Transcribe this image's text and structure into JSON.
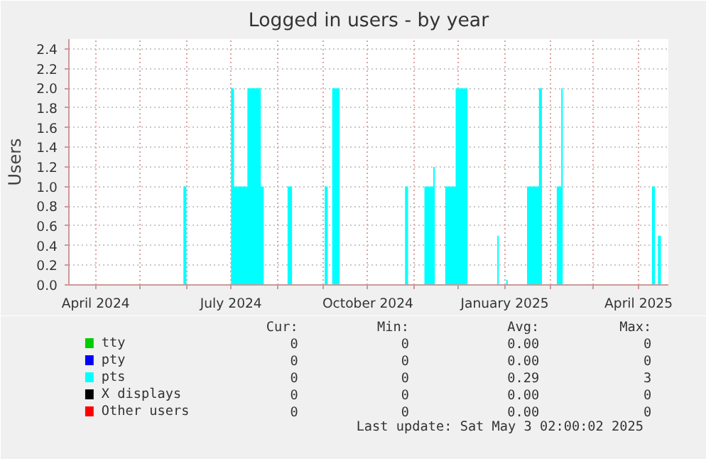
{
  "chart_data": {
    "type": "area",
    "title": "Logged in users - by year",
    "ylabel": "Users",
    "series": [
      {
        "name": "tty",
        "color": "#00cc00",
        "type": "line",
        "values": [
          null
        ]
      },
      {
        "name": "pty",
        "color": "#0000ff",
        "type": "line",
        "values": [
          null
        ]
      },
      {
        "name": "X displays",
        "color": "#000000",
        "type": "line",
        "values": [
          null
        ]
      },
      {
        "name": "Other users",
        "color": "#ff0000",
        "type": "line",
        "values": [
          null
        ]
      },
      {
        "name": "pts",
        "color": "#00ffff",
        "x": [
          "2024-03-14",
          "2024-05-30",
          "2024-05-30",
          "2024-06-01",
          "2024-06-01",
          "2024-07-01",
          "2024-07-01",
          "2024-07-03",
          "2024-07-03",
          "2024-07-12",
          "2024-07-12",
          "2024-07-21",
          "2024-07-21",
          "2024-07-23",
          "2024-07-23",
          "2024-08-08",
          "2024-08-08",
          "2024-08-11",
          "2024-08-11",
          "2024-09-02",
          "2024-09-02",
          "2024-09-04",
          "2024-09-04",
          "2024-09-07",
          "2024-09-07",
          "2024-09-12",
          "2024-09-12",
          "2024-10-26",
          "2024-10-26",
          "2024-10-28",
          "2024-10-28",
          "2024-11-08",
          "2024-11-08",
          "2024-11-14",
          "2024-11-14",
          "2024-11-15",
          "2024-11-15",
          "2024-11-22",
          "2024-11-22",
          "2024-11-29",
          "2024-11-29",
          "2024-12-07",
          "2024-12-07",
          "2024-12-27",
          "2024-12-27",
          "2024-12-28",
          "2024-12-28",
          "2025-01-02",
          "2025-01-02",
          "2025-01-03",
          "2025-01-03",
          "2025-01-16",
          "2025-01-16",
          "2025-01-24",
          "2025-01-24",
          "2025-01-26",
          "2025-01-26",
          "2025-02-05",
          "2025-02-05",
          "2025-02-08",
          "2025-02-08",
          "2025-02-09",
          "2025-02-09",
          "2025-04-10",
          "2025-04-10",
          "2025-04-12",
          "2025-04-12",
          "2025-04-14",
          "2025-04-14",
          "2025-04-16",
          "2025-04-16",
          "2025-04-21"
        ],
        "values": [
          0,
          0,
          1,
          1,
          0,
          0,
          2,
          2,
          1,
          1,
          2,
          2,
          1,
          1,
          0,
          0,
          1,
          1,
          0,
          0,
          1,
          1,
          0,
          0,
          2,
          2,
          0,
          0,
          1,
          1,
          0,
          0,
          1,
          1,
          1.2,
          1.2,
          0,
          0,
          1,
          1,
          2,
          2,
          0,
          0,
          0.5,
          0.5,
          0,
          0,
          0.05,
          0.05,
          0,
          0,
          1,
          1,
          2,
          2,
          0,
          0,
          1,
          1,
          2,
          2,
          0,
          0,
          1,
          1,
          0,
          0,
          0.5,
          0.5,
          0,
          0
        ]
      }
    ],
    "xlim": [
      "2024-03-14",
      "2025-04-21"
    ],
    "xticks": [
      {
        "value": "2024-04-01",
        "label": "April 2024"
      },
      {
        "value": "2024-05-01",
        "label": null
      },
      {
        "value": "2024-06-01",
        "label": null
      },
      {
        "value": "2024-07-01",
        "label": "July 2024"
      },
      {
        "value": "2024-08-01",
        "label": null
      },
      {
        "value": "2024-09-01",
        "label": null
      },
      {
        "value": "2024-10-01",
        "label": "October 2024"
      },
      {
        "value": "2024-11-01",
        "label": null
      },
      {
        "value": "2024-12-01",
        "label": null
      },
      {
        "value": "2025-01-01",
        "label": "January 2025"
      },
      {
        "value": "2025-02-01",
        "label": null
      },
      {
        "value": "2025-03-01",
        "label": null
      },
      {
        "value": "2025-04-01",
        "label": "April 2025"
      }
    ],
    "ylim": [
      0,
      2.5
    ],
    "yticks": [
      {
        "value": 0,
        "label": "0.0"
      },
      0.2,
      0.4,
      0.6,
      0.8,
      {
        "value": 1,
        "label": "1.0"
      },
      1.2,
      1.4,
      1.6,
      1.8,
      {
        "value": 2,
        "label": "2.0"
      },
      2.2,
      2.4
    ],
    "grid": true,
    "legend": "bottom",
    "annotations": [
      "Cur:",
      "Min:",
      "Avg:",
      "Max:",
      "0",
      "0",
      "0.00",
      "0",
      "0",
      "0",
      "0.00",
      "0",
      "0",
      "0",
      "0.00",
      "0",
      "0",
      "0",
      "0.00",
      "0",
      "0",
      "0",
      "0.29",
      "3",
      "Last update: Sat May  3 02:00:02 2025"
    ]
  }
}
